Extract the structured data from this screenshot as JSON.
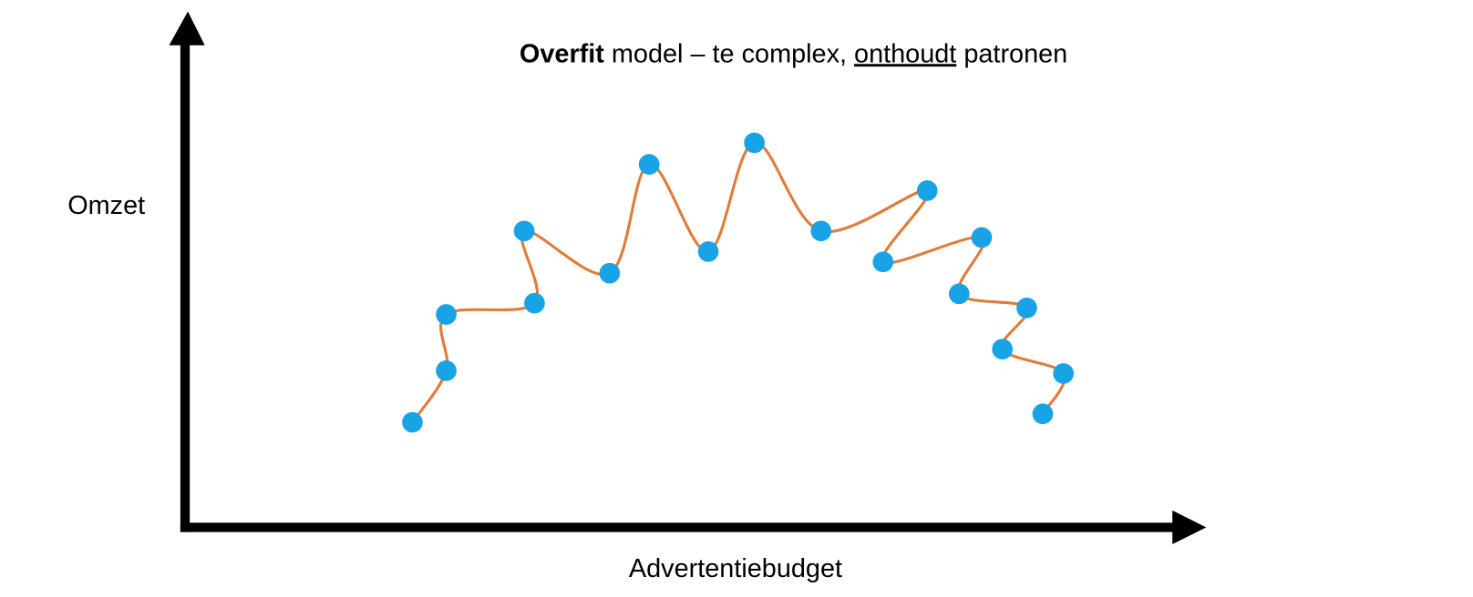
{
  "title": {
    "parts": [
      "Overfit",
      "model – te complex,",
      "onthoudt",
      "patronen"
    ]
  },
  "y_axis_label": "Omzet",
  "x_axis_label": "Advertentiebudget"
}
